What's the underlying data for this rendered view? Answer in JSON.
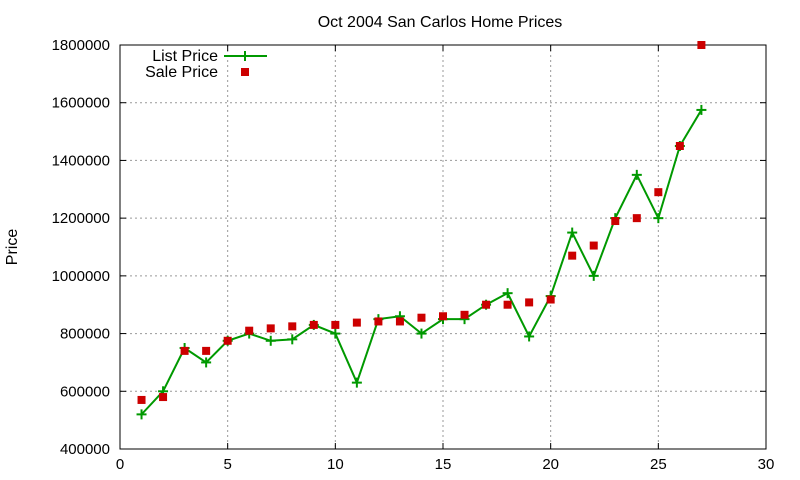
{
  "chart_data": {
    "type": "line",
    "title": "Oct 2004 San Carlos Home Prices",
    "xlabel": "",
    "ylabel": "Price",
    "xlim": [
      0,
      30
    ],
    "ylim": [
      400000,
      1800000
    ],
    "xticks": [
      0,
      5,
      10,
      15,
      20,
      25,
      30
    ],
    "yticks": [
      400000,
      600000,
      800000,
      1000000,
      1200000,
      1400000,
      1600000,
      1800000
    ],
    "grid": true,
    "legend_position": "top-left",
    "series": [
      {
        "name": "List Price",
        "style": "line-with-plus-markers",
        "color": "#009900",
        "x": [
          1,
          2,
          3,
          4,
          5,
          6,
          7,
          8,
          9,
          10,
          11,
          12,
          13,
          14,
          15,
          16,
          17,
          18,
          19,
          20,
          21,
          22,
          23,
          24,
          25,
          26,
          27
        ],
        "y": [
          520000,
          600000,
          750000,
          700000,
          775000,
          800000,
          775000,
          780000,
          830000,
          800000,
          630000,
          850000,
          860000,
          800000,
          850000,
          850000,
          900000,
          940000,
          790000,
          930000,
          1150000,
          1000000,
          1200000,
          1350000,
          1200000,
          1450000,
          1575000
        ]
      },
      {
        "name": "Sale Price",
        "style": "square-markers",
        "color": "#cc0000",
        "x": [
          1,
          2,
          3,
          4,
          5,
          6,
          7,
          8,
          9,
          10,
          11,
          12,
          13,
          14,
          15,
          16,
          17,
          18,
          19,
          20,
          21,
          22,
          23,
          24,
          25,
          26,
          27
        ],
        "y": [
          570000,
          580000,
          740000,
          740000,
          775000,
          810000,
          818000,
          825000,
          830000,
          830000,
          838000,
          842000,
          842000,
          855000,
          860000,
          865000,
          900000,
          900000,
          908000,
          918000,
          1070000,
          1105000,
          1190000,
          1200000,
          1290000,
          1450000,
          1800000
        ]
      }
    ]
  }
}
